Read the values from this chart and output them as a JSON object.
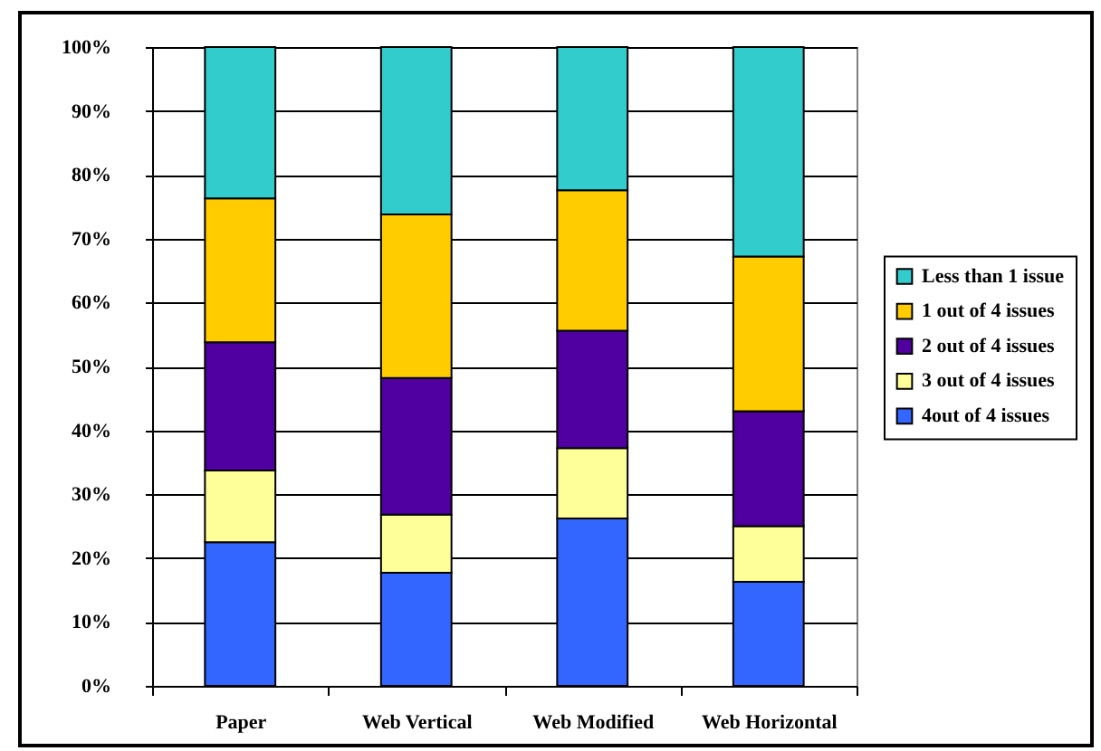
{
  "chart_data": {
    "type": "bar",
    "stacked": true,
    "categories": [
      "Paper",
      "Web Vertical",
      "Web Modified",
      "Web Horizontal"
    ],
    "series": [
      {
        "name": "4out of 4 issues",
        "color": "#3366ff",
        "values": [
          22.5,
          17.7,
          26.2,
          16.3
        ]
      },
      {
        "name": "3 out of 4 issues",
        "color": "#ffff99",
        "values": [
          11.2,
          9.1,
          11.0,
          8.7
        ]
      },
      {
        "name": "2 out of 4 issues",
        "color": "#5000a0",
        "values": [
          20.1,
          21.4,
          18.4,
          18.0
        ]
      },
      {
        "name": "1 out of 4 issues",
        "color": "#ffcc00",
        "values": [
          22.5,
          25.6,
          22.0,
          24.2
        ]
      },
      {
        "name": "Less than 1 issue",
        "color": "#33cccc",
        "values": [
          23.7,
          26.2,
          22.4,
          32.8
        ]
      }
    ],
    "ylim": [
      0,
      100
    ],
    "yticks": [
      {
        "value": 0,
        "label": "0%"
      },
      {
        "value": 10,
        "label": "10%"
      },
      {
        "value": 20,
        "label": "20%"
      },
      {
        "value": 30,
        "label": "30%"
      },
      {
        "value": 40,
        "label": "40%"
      },
      {
        "value": 50,
        "label": "50%"
      },
      {
        "value": 60,
        "label": "60%"
      },
      {
        "value": 70,
        "label": "70%"
      },
      {
        "value": 80,
        "label": "80%"
      },
      {
        "value": 90,
        "label": "90%"
      },
      {
        "value": 100,
        "label": "100%"
      }
    ],
    "grid": "y",
    "legend": "right"
  }
}
